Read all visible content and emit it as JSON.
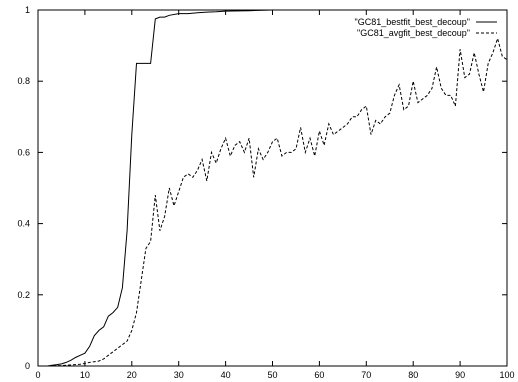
{
  "chart_data": {
    "type": "line",
    "title": "",
    "xlabel": "",
    "ylabel": "",
    "xlim": [
      0,
      100
    ],
    "ylim": [
      0,
      1
    ],
    "xticks": [
      0,
      10,
      20,
      30,
      40,
      50,
      60,
      70,
      80,
      90,
      100
    ],
    "yticks": [
      0,
      0.2,
      0.4,
      0.6,
      0.8,
      1
    ],
    "grid": false,
    "legend_position": "top-right",
    "series": [
      {
        "name": "\"GC81_bestfit_best_decoup\"",
        "line_style": "solid",
        "color": "#000000",
        "x": [
          0,
          2,
          3,
          4,
          5,
          6,
          7,
          8,
          9,
          10,
          11,
          12,
          13,
          14,
          15,
          16,
          17,
          18,
          19,
          20,
          21,
          22,
          23,
          24,
          25,
          26,
          27,
          28,
          30,
          32,
          34,
          36,
          38,
          40,
          45,
          50,
          60,
          70,
          80,
          90,
          100
        ],
        "y": [
          0,
          0,
          0.002,
          0.004,
          0.006,
          0.01,
          0.016,
          0.024,
          0.03,
          0.036,
          0.055,
          0.085,
          0.1,
          0.11,
          0.14,
          0.15,
          0.165,
          0.22,
          0.38,
          0.65,
          0.85,
          0.85,
          0.85,
          0.85,
          0.975,
          0.98,
          0.98,
          0.985,
          0.99,
          0.99,
          0.992,
          0.994,
          0.995,
          0.997,
          0.998,
          1.0,
          1.0,
          1.0,
          1.0,
          1.0,
          1.0
        ]
      },
      {
        "name": "\"GC81_avgfit_best_decoup\"",
        "line_style": "dashed",
        "color": "#000000",
        "x": [
          0,
          2,
          3,
          4,
          5,
          6,
          7,
          8,
          9,
          10,
          11,
          12,
          13,
          14,
          15,
          16,
          17,
          18,
          19,
          20,
          21,
          22,
          23,
          24,
          25,
          26,
          27,
          28,
          29,
          30,
          31,
          32,
          33,
          34,
          35,
          36,
          37,
          38,
          39,
          40,
          41,
          42,
          43,
          44,
          45,
          46,
          47,
          48,
          49,
          50,
          51,
          52,
          53,
          54,
          55,
          56,
          57,
          58,
          59,
          60,
          61,
          62,
          63,
          64,
          65,
          66,
          67,
          68,
          69,
          70,
          71,
          72,
          73,
          74,
          75,
          76,
          77,
          78,
          79,
          80,
          81,
          82,
          83,
          84,
          85,
          86,
          87,
          88,
          89,
          90,
          91,
          92,
          93,
          94,
          95,
          96,
          97,
          98,
          99,
          100
        ],
        "y": [
          0,
          0,
          0,
          0.001,
          0.001,
          0.002,
          0.003,
          0.004,
          0.005,
          0.007,
          0.01,
          0.012,
          0.014,
          0.02,
          0.03,
          0.04,
          0.05,
          0.06,
          0.07,
          0.1,
          0.15,
          0.24,
          0.33,
          0.35,
          0.48,
          0.38,
          0.42,
          0.5,
          0.45,
          0.49,
          0.53,
          0.54,
          0.53,
          0.55,
          0.58,
          0.52,
          0.6,
          0.57,
          0.61,
          0.64,
          0.59,
          0.62,
          0.63,
          0.6,
          0.64,
          0.53,
          0.61,
          0.58,
          0.6,
          0.63,
          0.64,
          0.59,
          0.6,
          0.6,
          0.61,
          0.67,
          0.6,
          0.64,
          0.59,
          0.66,
          0.62,
          0.68,
          0.65,
          0.66,
          0.67,
          0.68,
          0.7,
          0.7,
          0.72,
          0.73,
          0.65,
          0.69,
          0.68,
          0.7,
          0.71,
          0.76,
          0.79,
          0.72,
          0.73,
          0.8,
          0.74,
          0.75,
          0.76,
          0.78,
          0.84,
          0.78,
          0.76,
          0.76,
          0.73,
          0.89,
          0.81,
          0.82,
          0.88,
          0.82,
          0.77,
          0.85,
          0.88,
          0.92,
          0.87,
          0.86
        ]
      }
    ]
  }
}
